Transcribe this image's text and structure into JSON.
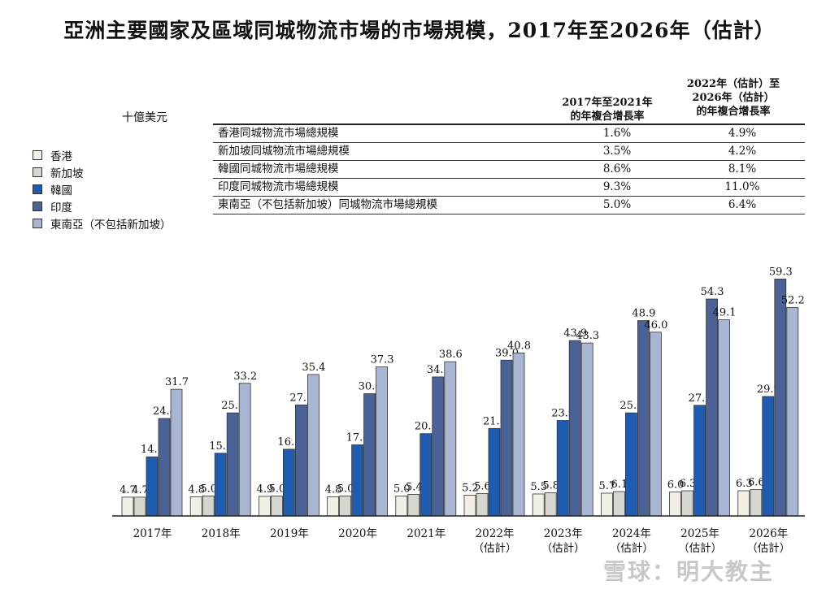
{
  "title": "亞洲主要國家及區域同城物流市場的市場規模，2017年至2026年（估計）",
  "unit": "十億美元",
  "cagr_table": {
    "col1_header": [
      "2017年至2021年",
      "的年複合增長率"
    ],
    "col2_header": [
      "2022年（估計）至",
      "2026年（估計）",
      "的年複合增長率"
    ],
    "rows": [
      {
        "label": "香港同城物流市場總規模",
        "v1": "1.6%",
        "v2": "4.9%"
      },
      {
        "label": "新加坡同城物流市場總規模",
        "v1": "3.5%",
        "v2": "4.2%"
      },
      {
        "label": "韓國同城物流市場總規模",
        "v1": "8.6%",
        "v2": "8.1%"
      },
      {
        "label": "印度同城物流市場總規模",
        "v1": "9.3%",
        "v2": "11.0%"
      },
      {
        "label": "東南亞（不包括新加坡）同城物流市場總規模",
        "v1": "5.0%",
        "v2": "6.4%"
      }
    ]
  },
  "colors": {
    "hk": "#f2f0e6",
    "sg": "#d6d6d0",
    "kr": "#1f5cb0",
    "in": "#4a6296",
    "sea": "#a9b6d3"
  },
  "watermark": "雪球：明大教主",
  "chart_data": {
    "type": "bar",
    "title": "亞洲主要國家及區域同城物流市場的市場規模，2017年至2026年（估計）",
    "ylabel": "十億美元",
    "ylim": [
      0,
      60
    ],
    "legend_position": "left",
    "categories": [
      [
        "2017年"
      ],
      [
        "2018年"
      ],
      [
        "2019年"
      ],
      [
        "2020年"
      ],
      [
        "2021年"
      ],
      [
        "2022年",
        "（估計）"
      ],
      [
        "2023年",
        "（估計）"
      ],
      [
        "2024年",
        "（估計）"
      ],
      [
        "2025年",
        "（估計）"
      ],
      [
        "2026年",
        "（估計）"
      ]
    ],
    "series": [
      {
        "key": "hk",
        "name": "香港",
        "values": [
          4.7,
          4.8,
          4.9,
          4.8,
          5.0,
          5.2,
          5.5,
          5.7,
          6.0,
          6.3
        ]
      },
      {
        "key": "sg",
        "name": "新加坡",
        "values": [
          4.7,
          5.0,
          5.0,
          5.0,
          5.4,
          5.6,
          5.8,
          6.1,
          6.3,
          6.6
        ]
      },
      {
        "key": "kr",
        "name": "韓國",
        "values": [
          14.8,
          15.7,
          16.7,
          17.8,
          20.6,
          21.9,
          23.9,
          25.8,
          27.7,
          29.9
        ]
      },
      {
        "key": "in",
        "name": "印度",
        "values": [
          24.4,
          25.8,
          27.8,
          30.6,
          34.8,
          39.0,
          43.9,
          48.9,
          54.3,
          59.3
        ]
      },
      {
        "key": "sea",
        "name": "東南亞（不包括新加坡）",
        "values": [
          31.7,
          33.2,
          35.4,
          37.3,
          38.6,
          40.8,
          43.3,
          46.0,
          49.1,
          52.2
        ]
      }
    ]
  }
}
